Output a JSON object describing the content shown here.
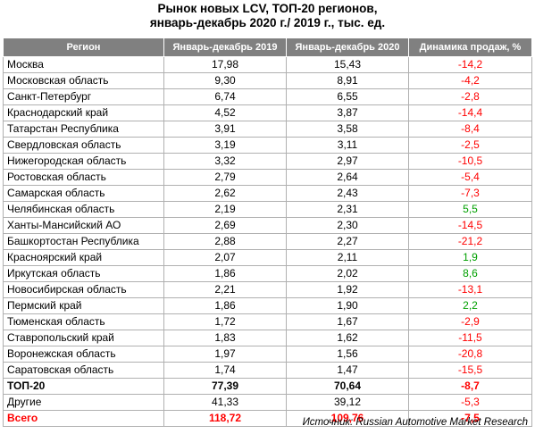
{
  "title_line1": "Рынок новых LCV, ТОП-20 регионов,",
  "title_line2": "январь-декабрь 2020 г./ 2019 г., тыс. ед.",
  "headers": [
    "Регион",
    "Январь-декабрь 2019",
    "Январь-декабрь 2020",
    "Динамика продаж, %"
  ],
  "rows": [
    {
      "region": "Москва",
      "y2019": "17,98",
      "y2020": "15,43",
      "dyn": "-14,2",
      "trend": "neg"
    },
    {
      "region": "Московская область",
      "y2019": "9,30",
      "y2020": "8,91",
      "dyn": "-4,2",
      "trend": "neg"
    },
    {
      "region": "Санкт-Петербург",
      "y2019": "6,74",
      "y2020": "6,55",
      "dyn": "-2,8",
      "trend": "neg"
    },
    {
      "region": "Краснодарский край",
      "y2019": "4,52",
      "y2020": "3,87",
      "dyn": "-14,4",
      "trend": "neg"
    },
    {
      "region": "Татарстан Республика",
      "y2019": "3,91",
      "y2020": "3,58",
      "dyn": "-8,4",
      "trend": "neg"
    },
    {
      "region": "Свердловская область",
      "y2019": "3,19",
      "y2020": "3,11",
      "dyn": "-2,5",
      "trend": "neg"
    },
    {
      "region": "Нижегородская область",
      "y2019": "3,32",
      "y2020": "2,97",
      "dyn": "-10,5",
      "trend": "neg"
    },
    {
      "region": "Ростовская область",
      "y2019": "2,79",
      "y2020": "2,64",
      "dyn": "-5,4",
      "trend": "neg"
    },
    {
      "region": "Самарская область",
      "y2019": "2,62",
      "y2020": "2,43",
      "dyn": "-7,3",
      "trend": "neg"
    },
    {
      "region": "Челябинская область",
      "y2019": "2,19",
      "y2020": "2,31",
      "dyn": "5,5",
      "trend": "pos"
    },
    {
      "region": "Ханты-Мансийский АО",
      "y2019": "2,69",
      "y2020": "2,30",
      "dyn": "-14,5",
      "trend": "neg"
    },
    {
      "region": "Башкортостан Республика",
      "y2019": "2,88",
      "y2020": "2,27",
      "dyn": "-21,2",
      "trend": "neg"
    },
    {
      "region": "Красноярский край",
      "y2019": "2,07",
      "y2020": "2,11",
      "dyn": "1,9",
      "trend": "pos"
    },
    {
      "region": "Иркутская область",
      "y2019": "1,86",
      "y2020": "2,02",
      "dyn": "8,6",
      "trend": "pos"
    },
    {
      "region": "Новосибирская область",
      "y2019": "2,21",
      "y2020": "1,92",
      "dyn": "-13,1",
      "trend": "neg"
    },
    {
      "region": "Пермский край",
      "y2019": "1,86",
      "y2020": "1,90",
      "dyn": "2,2",
      "trend": "pos"
    },
    {
      "region": "Тюменская область",
      "y2019": "1,72",
      "y2020": "1,67",
      "dyn": "-2,9",
      "trend": "neg"
    },
    {
      "region": "Ставропольский край",
      "y2019": "1,83",
      "y2020": "1,62",
      "dyn": "-11,5",
      "trend": "neg"
    },
    {
      "region": "Воронежская область",
      "y2019": "1,97",
      "y2020": "1,56",
      "dyn": "-20,8",
      "trend": "neg"
    },
    {
      "region": "Саратовская область",
      "y2019": "1,74",
      "y2020": "1,47",
      "dyn": "-15,5",
      "trend": "neg"
    },
    {
      "region": "ТОП-20",
      "y2019": "77,39",
      "y2020": "70,64",
      "dyn": "-8,7",
      "trend": "neg",
      "style": "bold"
    },
    {
      "region": "Другие",
      "y2019": "41,33",
      "y2020": "39,12",
      "dyn": "-5,3",
      "trend": "neg"
    },
    {
      "region": "Всего",
      "y2019": "118,72",
      "y2020": "109,76",
      "dyn": "-7,5",
      "trend": "neg",
      "style": "total"
    }
  ],
  "source_label": "Источник:",
  "source_text": "Russian Automotive Market Research",
  "colors": {
    "header_bg": "#808080",
    "negative": "#ff0000",
    "positive": "#00a000"
  }
}
